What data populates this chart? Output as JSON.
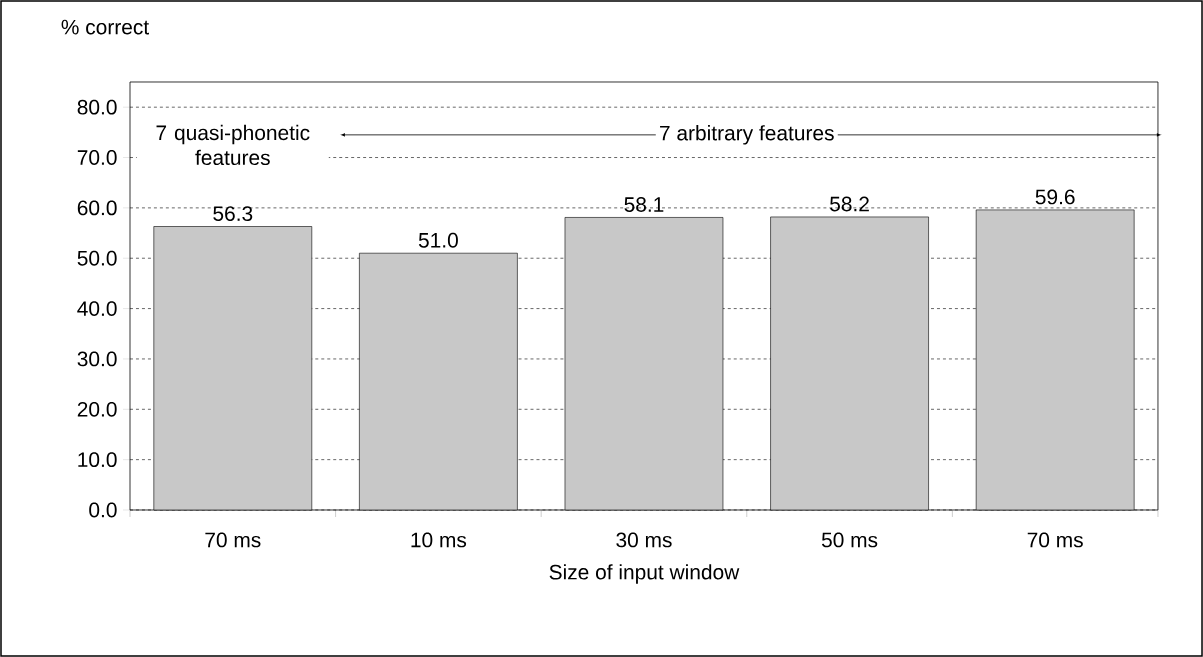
{
  "chart_data": {
    "type": "bar",
    "ylabel": "% correct",
    "xlabel": "Size of input window",
    "categories": [
      "70 ms",
      "10 ms",
      "30 ms",
      "50 ms",
      "70 ms"
    ],
    "values": [
      56.3,
      51.0,
      58.1,
      58.2,
      59.6
    ],
    "value_labels": [
      "56.3",
      "51.0",
      "58.1",
      "58.2",
      "59.6"
    ],
    "color": "#c8c8c8",
    "ylim": [
      0,
      85
    ],
    "yticks": [
      {
        "value": 0,
        "label": "0.0"
      },
      {
        "value": 10,
        "label": "10.0"
      },
      {
        "value": 20,
        "label": "20.0"
      },
      {
        "value": 30,
        "label": "30.0"
      },
      {
        "value": 40,
        "label": "40.0"
      },
      {
        "value": 50,
        "label": "50.0"
      },
      {
        "value": 60,
        "label": "60.0"
      },
      {
        "value": 70,
        "label": "70.0"
      },
      {
        "value": 80,
        "label": "80.0"
      }
    ],
    "grid": "y",
    "annotations": [
      "7 quasi-phonetic features",
      "7 arbitrary features"
    ]
  }
}
